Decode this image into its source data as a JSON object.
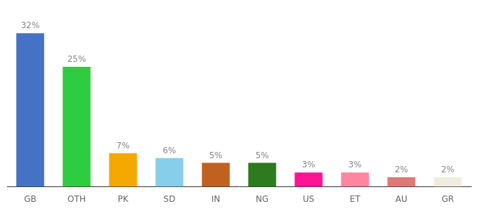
{
  "chart_data": {
    "type": "bar",
    "categories": [
      "GB",
      "OTH",
      "PK",
      "SD",
      "IN",
      "NG",
      "US",
      "ET",
      "AU",
      "GR"
    ],
    "values": [
      32,
      25,
      7,
      6,
      5,
      5,
      3,
      3,
      2,
      2
    ],
    "value_labels": [
      "32%",
      "25%",
      "7%",
      "6%",
      "5%",
      "5%",
      "3%",
      "3%",
      "2%",
      "2%"
    ],
    "colors": [
      "#4472c4",
      "#2ecc40",
      "#f5a800",
      "#87ceeb",
      "#c1611f",
      "#2d7a1f",
      "#ff1493",
      "#ff85a1",
      "#e07878",
      "#f0ede0"
    ],
    "ylim": [
      0,
      36
    ],
    "grid": false,
    "legend": false,
    "data_labels": true,
    "tick_labels": "x"
  }
}
